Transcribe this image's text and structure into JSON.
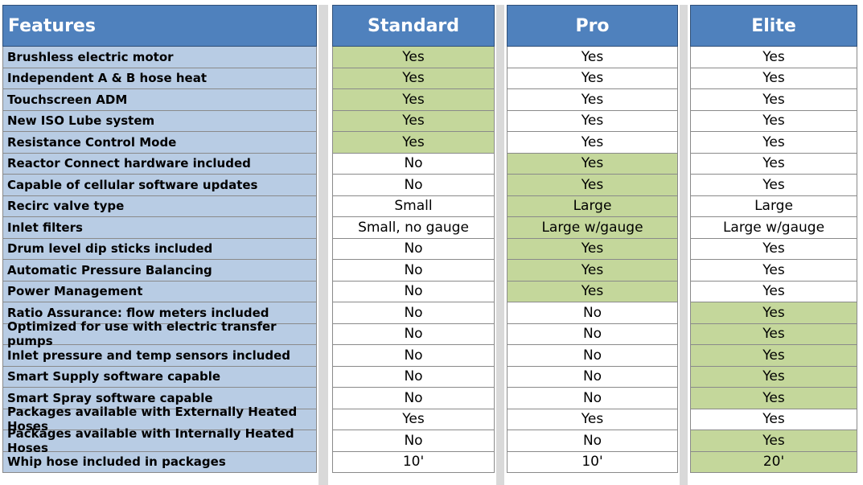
{
  "headers": {
    "features": "Features",
    "standard": "Standard",
    "pro": "Pro",
    "elite": "Elite"
  },
  "rows": [
    {
      "feature": "Brushless electric motor",
      "standard": "Yes",
      "pro": "Yes",
      "elite": "Yes",
      "highlight": "standard"
    },
    {
      "feature": "Independent A & B hose heat",
      "standard": "Yes",
      "pro": "Yes",
      "elite": "Yes",
      "highlight": "standard"
    },
    {
      "feature": "Touchscreen ADM",
      "standard": "Yes",
      "pro": "Yes",
      "elite": "Yes",
      "highlight": "standard"
    },
    {
      "feature": "New ISO Lube system",
      "standard": "Yes",
      "pro": "Yes",
      "elite": "Yes",
      "highlight": "standard"
    },
    {
      "feature": "Resistance Control Mode",
      "standard": "Yes",
      "pro": "Yes",
      "elite": "Yes",
      "highlight": "standard"
    },
    {
      "feature": "Reactor Connect hardware included",
      "standard": "No",
      "pro": "Yes",
      "elite": "Yes",
      "highlight": "pro"
    },
    {
      "feature": "Capable of cellular software updates",
      "standard": "No",
      "pro": "Yes",
      "elite": "Yes",
      "highlight": "pro"
    },
    {
      "feature": "Recirc valve type",
      "standard": "Small",
      "pro": "Large",
      "elite": "Large",
      "highlight": "pro"
    },
    {
      "feature": "Inlet filters",
      "standard": "Small, no gauge",
      "pro": "Large w/gauge",
      "elite": "Large w/gauge",
      "highlight": "pro"
    },
    {
      "feature": "Drum level dip sticks included",
      "standard": "No",
      "pro": "Yes",
      "elite": "Yes",
      "highlight": "pro"
    },
    {
      "feature": "Automatic Pressure Balancing",
      "standard": "No",
      "pro": "Yes",
      "elite": "Yes",
      "highlight": "pro"
    },
    {
      "feature": "Power Management",
      "standard": "No",
      "pro": "Yes",
      "elite": "Yes",
      "highlight": "pro"
    },
    {
      "feature": "Ratio Assurance: flow meters included",
      "standard": "No",
      "pro": "No",
      "elite": "Yes",
      "highlight": "elite"
    },
    {
      "feature": "Optimized for use with electric transfer pumps",
      "standard": "No",
      "pro": "No",
      "elite": "Yes",
      "highlight": "elite"
    },
    {
      "feature": "Inlet pressure and temp sensors included",
      "standard": "No",
      "pro": "No",
      "elite": "Yes",
      "highlight": "elite"
    },
    {
      "feature": "Smart Supply software capable",
      "standard": "No",
      "pro": "No",
      "elite": "Yes",
      "highlight": "elite"
    },
    {
      "feature": "Smart Spray software capable",
      "standard": "No",
      "pro": "No",
      "elite": "Yes",
      "highlight": "elite"
    },
    {
      "feature": "Packages available with Externally Heated Hoses",
      "standard": "Yes",
      "pro": "Yes",
      "elite": "Yes",
      "highlight": "none"
    },
    {
      "feature": "Packages available with Internally Heated Hoses",
      "standard": "No",
      "pro": "No",
      "elite": "Yes",
      "highlight": "elite"
    },
    {
      "feature": "Whip hose included in packages",
      "standard": "10'",
      "pro": "10'",
      "elite": "20'",
      "highlight": "elite"
    }
  ],
  "colors": {
    "header": "#4f81bd",
    "feature_cell": "#b8cce4",
    "highlight": "#c4d79b",
    "separator": "#d9d9d9"
  }
}
